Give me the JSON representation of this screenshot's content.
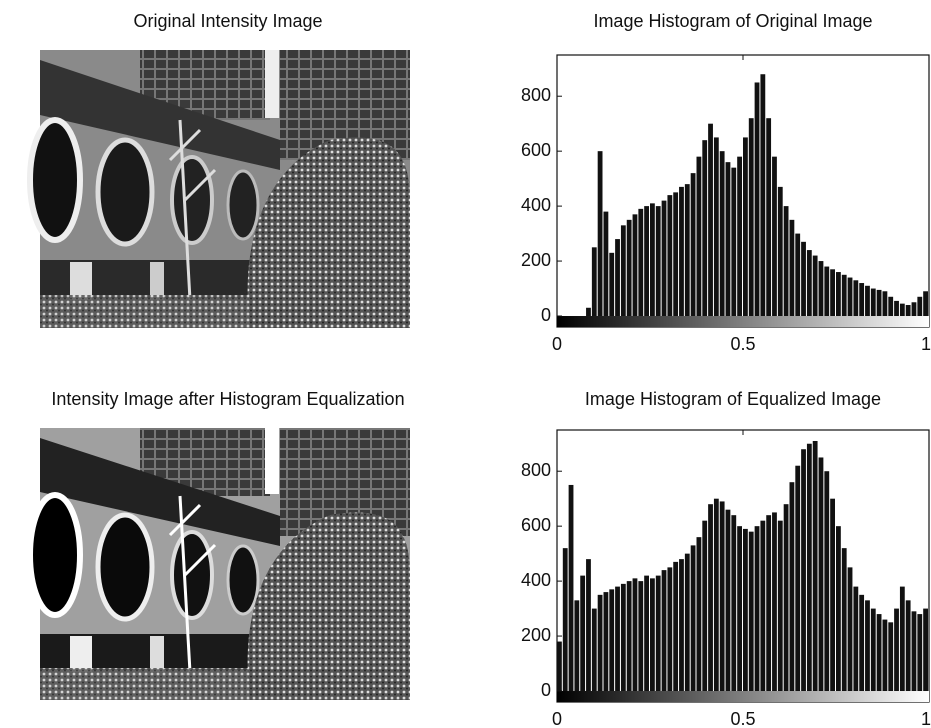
{
  "images": [
    {
      "title": "Original Intensity Image"
    },
    {
      "title": "Intensity Image after Histogram Equalization"
    }
  ],
  "chart_data": [
    {
      "type": "histogram",
      "title": "Image Histogram of Original Image",
      "color": "#111111",
      "bins": [
        0,
        0.015625,
        0.03125,
        0.046875,
        0.0625,
        0.078125,
        0.09375,
        0.109375,
        0.125,
        0.140625,
        0.15625,
        0.171875,
        0.1875,
        0.203125,
        0.21875,
        0.234375,
        0.25,
        0.265625,
        0.28125,
        0.296875,
        0.3125,
        0.328125,
        0.34375,
        0.359375,
        0.375,
        0.390625,
        0.40625,
        0.421875,
        0.4375,
        0.453125,
        0.46875,
        0.484375,
        0.5,
        0.515625,
        0.53125,
        0.546875,
        0.5625,
        0.578125,
        0.59375,
        0.609375,
        0.625,
        0.640625,
        0.65625,
        0.671875,
        0.6875,
        0.703125,
        0.71875,
        0.734375,
        0.75,
        0.765625,
        0.78125,
        0.796875,
        0.8125,
        0.828125,
        0.84375,
        0.859375,
        0.875,
        0.890625,
        0.90625,
        0.921875,
        0.9375,
        0.953125,
        0.96875,
        0.984375,
        1
      ],
      "values": [
        0,
        0,
        0,
        0,
        0,
        30,
        250,
        600,
        380,
        230,
        280,
        330,
        350,
        370,
        390,
        400,
        410,
        400,
        420,
        440,
        450,
        470,
        480,
        520,
        580,
        640,
        700,
        650,
        600,
        560,
        540,
        580,
        650,
        720,
        850,
        880,
        720,
        580,
        470,
        400,
        350,
        300,
        270,
        240,
        220,
        200,
        180,
        170,
        160,
        150,
        140,
        130,
        120,
        110,
        100,
        95,
        90,
        70,
        55,
        45,
        40,
        50,
        70,
        90
      ],
      "xlim": [
        0,
        1
      ],
      "xticks": [
        0,
        0.5,
        1
      ],
      "ylim": [
        -40,
        950
      ],
      "yticks": [
        0,
        200,
        400,
        600,
        800
      ]
    },
    {
      "type": "histogram",
      "title": "Image Histogram of Equalized Image",
      "color": "#111111",
      "bins": [
        0,
        0.015625,
        0.03125,
        0.046875,
        0.0625,
        0.078125,
        0.09375,
        0.109375,
        0.125,
        0.140625,
        0.15625,
        0.171875,
        0.1875,
        0.203125,
        0.21875,
        0.234375,
        0.25,
        0.265625,
        0.28125,
        0.296875,
        0.3125,
        0.328125,
        0.34375,
        0.359375,
        0.375,
        0.390625,
        0.40625,
        0.421875,
        0.4375,
        0.453125,
        0.46875,
        0.484375,
        0.5,
        0.515625,
        0.53125,
        0.546875,
        0.5625,
        0.578125,
        0.59375,
        0.609375,
        0.625,
        0.640625,
        0.65625,
        0.671875,
        0.6875,
        0.703125,
        0.71875,
        0.734375,
        0.75,
        0.765625,
        0.78125,
        0.796875,
        0.8125,
        0.828125,
        0.84375,
        0.859375,
        0.875,
        0.890625,
        0.90625,
        0.921875,
        0.9375,
        0.953125,
        0.96875,
        0.984375,
        1
      ],
      "values": [
        180,
        520,
        750,
        330,
        420,
        480,
        300,
        350,
        360,
        370,
        380,
        390,
        400,
        410,
        400,
        420,
        410,
        420,
        440,
        450,
        470,
        480,
        500,
        530,
        560,
        620,
        680,
        700,
        690,
        660,
        640,
        600,
        590,
        580,
        600,
        620,
        640,
        650,
        620,
        680,
        760,
        820,
        880,
        900,
        910,
        850,
        800,
        700,
        600,
        520,
        450,
        380,
        350,
        330,
        300,
        280,
        260,
        250,
        300,
        380,
        330,
        290,
        280,
        300
      ],
      "xlim": [
        0,
        1
      ],
      "xticks": [
        0,
        0.5,
        1
      ],
      "ylim": [
        -40,
        950
      ],
      "yticks": [
        0,
        200,
        400,
        600,
        800
      ]
    }
  ]
}
